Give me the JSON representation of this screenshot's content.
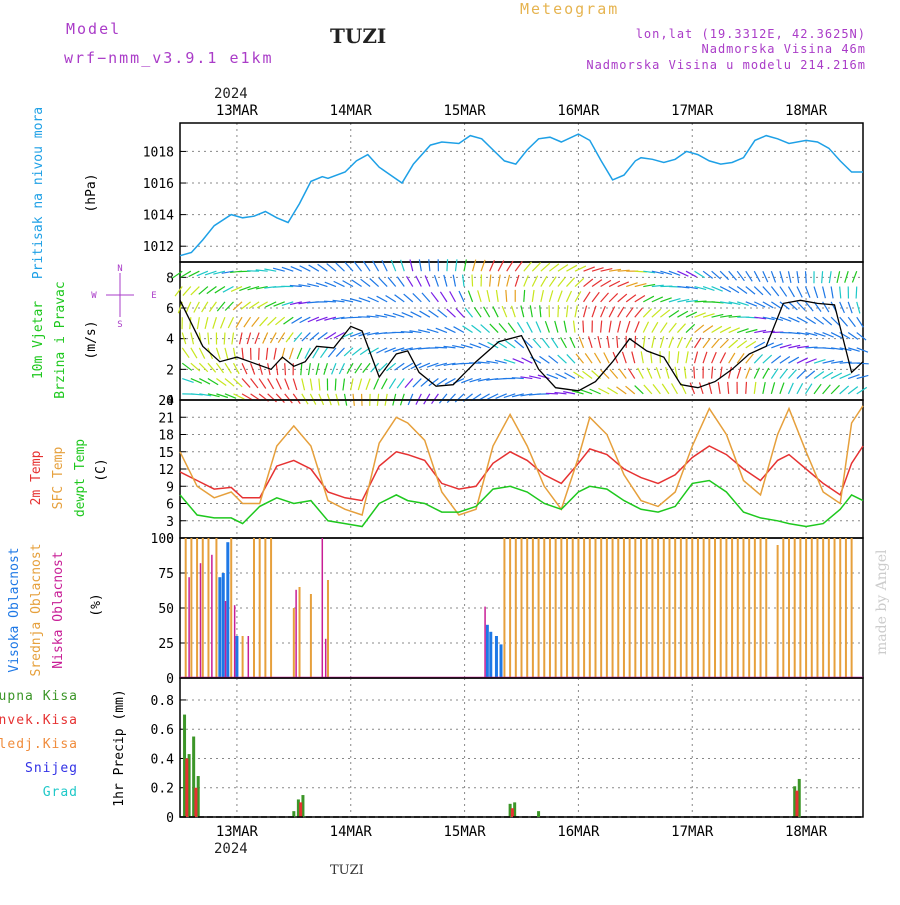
{
  "header": {
    "model_label": "Model",
    "model_name": "wrf−nmm_v3.9.1  e1km",
    "station": "TUZI",
    "meteogram_title": "Meteogram",
    "lonlat": "lon,lat (19.3312E, 42.3625N)",
    "elevation": "Nadmorska Visina 46m",
    "model_elevation": "Nadmorska Visina u modelu 214.216m",
    "year_top": "2024",
    "year_bottom": "2024",
    "footer_station": "TUZI",
    "credit": "made by Angel"
  },
  "colors": {
    "pressure": "#1ea0e6",
    "temp2m": "#e63232",
    "sfc": "#e6a03c",
    "dewpt": "#1ec81e",
    "high_cloud": "#1e78e6",
    "mid_cloud": "#e6a03c",
    "low_cloud": "#c81e96",
    "total_precip": "#3c9628",
    "convective": "#e63232",
    "frozen": "#f08c3c",
    "snow": "#3232e6",
    "grad": "#1ec8c8",
    "purple_text": "#aa3cc8",
    "gold_text": "#e6b450"
  },
  "chart_data": [
    {
      "type": "line",
      "panel": "pressure",
      "ylabel_lines": [
        "Pritisak na nivou mora",
        "(hPa)"
      ],
      "x_ticks": [
        "13MAR",
        "14MAR",
        "15MAR",
        "16MAR",
        "17MAR",
        "18MAR"
      ],
      "ylim": [
        1011,
        1019.8
      ],
      "y_ticks": [
        1012,
        1014,
        1016,
        1018
      ],
      "grid": true,
      "series": [
        {
          "values_x": [
            0,
            0.1,
            0.2,
            0.3,
            0.45,
            0.55,
            0.65,
            0.75,
            0.85,
            0.95,
            1.05,
            1.15,
            1.25,
            1.3,
            1.45,
            1.55,
            1.65,
            1.75,
            1.85,
            1.95,
            2.05,
            2.2,
            2.3,
            2.45,
            2.55,
            2.65,
            2.75,
            2.85,
            2.95,
            3.05,
            3.15,
            3.25,
            3.35,
            3.5,
            3.6,
            3.7,
            3.8,
            3.9,
            4.0,
            4.05,
            4.15,
            4.25,
            4.35,
            4.45,
            4.55,
            4.65,
            4.75,
            4.85,
            4.95,
            5.05,
            5.15,
            5.25,
            5.35,
            5.5,
            5.6,
            5.7,
            5.8,
            5.9,
            6.0
          ],
          "values": [
            1011.4,
            1011.6,
            1012.4,
            1013.3,
            1014.0,
            1013.8,
            1013.9,
            1014.2,
            1013.8,
            1013.5,
            1014.7,
            1016.1,
            1016.4,
            1016.3,
            1016.7,
            1017.4,
            1017.8,
            1017.0,
            1016.5,
            1016.0,
            1017.2,
            1018.4,
            1018.6,
            1018.5,
            1019.0,
            1018.8,
            1018.1,
            1017.4,
            1017.2,
            1018.1,
            1018.8,
            1018.9,
            1018.6,
            1019.1,
            1018.7,
            1017.4,
            1016.2,
            1016.5,
            1017.4,
            1017.6,
            1017.5,
            1017.3,
            1017.5,
            1018.0,
            1017.8,
            1017.4,
            1017.2,
            1017.3,
            1017.6,
            1018.7,
            1019.0,
            1018.8,
            1018.5,
            1018.7,
            1018.6,
            1018.2,
            1017.4,
            1016.7,
            1016.7
          ]
        }
      ]
    },
    {
      "type": "line",
      "panel": "wind",
      "ylabel_lines": [
        "10m Vjetar",
        "Brzina i Pravac",
        "(m/s)"
      ],
      "compass": {
        "north": "N",
        "west": "W",
        "east": "E",
        "south": "S"
      },
      "ylim": [
        0,
        9
      ],
      "y_ticks": [
        0,
        2,
        4,
        6,
        8
      ],
      "series": [
        {
          "name": "wind speed",
          "values_x": [
            0,
            0.2,
            0.35,
            0.5,
            0.65,
            0.8,
            0.9,
            1.0,
            1.1,
            1.2,
            1.35,
            1.5,
            1.6,
            1.75,
            1.9,
            2.0,
            2.1,
            2.25,
            2.4,
            2.6,
            2.8,
            3.0,
            3.15,
            3.3,
            3.5,
            3.65,
            3.8,
            3.95,
            4.1,
            4.25,
            4.4,
            4.55,
            4.7,
            4.85,
            5.0,
            5.15,
            5.3,
            5.45,
            5.6,
            5.75,
            5.9,
            6.0
          ],
          "values": [
            6.5,
            3.5,
            2.5,
            2.8,
            2.4,
            2.0,
            2.8,
            2.2,
            2.5,
            3.5,
            3.4,
            4.8,
            4.5,
            1.5,
            3.0,
            3.2,
            1.8,
            0.9,
            1.0,
            2.5,
            3.8,
            4.2,
            2.0,
            0.8,
            0.6,
            1.2,
            2.5,
            4.0,
            3.2,
            2.8,
            1.0,
            0.8,
            1.2,
            2.0,
            3.0,
            3.5,
            6.3,
            6.5,
            6.3,
            6.2,
            1.8,
            2.5
          ]
        }
      ]
    },
    {
      "type": "line",
      "panel": "temperature",
      "ylabel_lines": [
        "2m Temp",
        "SFC Temp",
        "dewpt Temp",
        "(C)"
      ],
      "ylim": [
        0,
        24
      ],
      "y_ticks": [
        0,
        3,
        6,
        9,
        12,
        15,
        18,
        21,
        24
      ],
      "series": [
        {
          "name": "2m Temp",
          "values_x": [
            0,
            0.15,
            0.3,
            0.45,
            0.55,
            0.7,
            0.85,
            1.0,
            1.15,
            1.3,
            1.45,
            1.6,
            1.75,
            1.9,
            2.0,
            2.15,
            2.3,
            2.45,
            2.6,
            2.75,
            2.9,
            3.05,
            3.2,
            3.35,
            3.5,
            3.6,
            3.75,
            3.9,
            4.05,
            4.2,
            4.35,
            4.5,
            4.65,
            4.8,
            4.95,
            5.1,
            5.25,
            5.35,
            5.5,
            5.65,
            5.8,
            5.9,
            6.0
          ],
          "values": [
            11.5,
            10.0,
            8.5,
            8.8,
            7.0,
            7.0,
            12.5,
            13.5,
            12.0,
            8.0,
            7.0,
            6.5,
            12.5,
            15.0,
            14.5,
            13.5,
            9.5,
            8.5,
            9.0,
            13.0,
            15.0,
            13.5,
            11.0,
            9.5,
            13.0,
            15.5,
            14.5,
            12.0,
            10.5,
            9.5,
            11.0,
            14.0,
            16.0,
            14.5,
            12.0,
            10.0,
            13.5,
            14.5,
            12.0,
            9.5,
            7.5,
            13.0,
            16.0
          ]
        },
        {
          "name": "SFC Temp",
          "values_x": [
            0,
            0.15,
            0.3,
            0.45,
            0.55,
            0.7,
            0.85,
            1.0,
            1.15,
            1.3,
            1.45,
            1.6,
            1.75,
            1.9,
            2.0,
            2.15,
            2.3,
            2.45,
            2.6,
            2.75,
            2.9,
            3.05,
            3.2,
            3.35,
            3.5,
            3.6,
            3.75,
            3.9,
            4.05,
            4.2,
            4.35,
            4.5,
            4.65,
            4.8,
            4.95,
            5.1,
            5.25,
            5.35,
            5.5,
            5.65,
            5.8,
            5.9,
            6.0
          ],
          "values": [
            15.0,
            9.0,
            7.0,
            8.0,
            6.0,
            6.0,
            16.0,
            19.5,
            16.0,
            6.5,
            5.0,
            4.0,
            16.5,
            21.0,
            20.0,
            17.0,
            8.0,
            4.0,
            5.0,
            16.0,
            21.5,
            16.0,
            9.0,
            5.0,
            14.0,
            21.0,
            18.0,
            11.0,
            6.5,
            5.5,
            8.0,
            16.0,
            22.5,
            18.0,
            10.0,
            7.5,
            18.0,
            22.5,
            15.0,
            8.0,
            6.0,
            20.0,
            23.0
          ]
        },
        {
          "name": "dewpt Temp",
          "values_x": [
            0,
            0.15,
            0.3,
            0.45,
            0.55,
            0.7,
            0.85,
            1.0,
            1.15,
            1.3,
            1.45,
            1.6,
            1.75,
            1.9,
            2.0,
            2.15,
            2.3,
            2.45,
            2.6,
            2.75,
            2.9,
            3.05,
            3.2,
            3.35,
            3.5,
            3.6,
            3.75,
            3.9,
            4.05,
            4.2,
            4.35,
            4.5,
            4.65,
            4.8,
            4.95,
            5.1,
            5.25,
            5.35,
            5.5,
            5.65,
            5.8,
            5.9,
            6.0
          ],
          "values": [
            7.5,
            4.0,
            3.5,
            3.5,
            2.5,
            5.5,
            7.0,
            6.0,
            6.5,
            3.0,
            2.5,
            2.0,
            6.0,
            7.5,
            6.5,
            6.0,
            4.5,
            4.5,
            5.5,
            8.5,
            9.0,
            8.0,
            6.0,
            5.0,
            8.0,
            9.0,
            8.5,
            6.5,
            5.0,
            4.5,
            5.5,
            9.5,
            10.0,
            8.0,
            4.5,
            3.5,
            3.0,
            2.5,
            2.0,
            2.5,
            5.0,
            7.5,
            6.5
          ]
        }
      ]
    },
    {
      "type": "bar",
      "panel": "clouds",
      "ylabel_lines": [
        "Visoka Oblacnost",
        "Srednja Oblacnost",
        "Niska  Oblacnost",
        "(%)"
      ],
      "ylim": [
        0,
        100
      ],
      "y_ticks": [
        0,
        25,
        50,
        75,
        100
      ],
      "series": [
        {
          "name": "Visoka Oblacnost",
          "values_x": [
            0.35,
            0.38,
            0.42,
            0.5,
            2.7,
            2.73,
            2.78,
            2.82
          ],
          "values": [
            72,
            75,
            97,
            30,
            38,
            33,
            30,
            24
          ]
        },
        {
          "name": "Srednja Oblacnost",
          "values_x": [
            0.05,
            0.1,
            0.15,
            0.2,
            0.25,
            0.32,
            0.45,
            0.55,
            0.65,
            0.7,
            0.75,
            0.8,
            1.0,
            1.05,
            1.15,
            1.3,
            2.85,
            2.9,
            2.95,
            3.0,
            3.05,
            3.1,
            3.15,
            3.2,
            3.25,
            3.3,
            3.35,
            3.4,
            3.45,
            3.5,
            3.55,
            3.6,
            3.65,
            3.7,
            3.75,
            3.8,
            3.85,
            3.9,
            3.95,
            4.0,
            4.05,
            4.1,
            4.15,
            4.2,
            4.25,
            4.3,
            4.35,
            4.4,
            4.45,
            4.5,
            4.55,
            4.6,
            4.65,
            4.7,
            4.75,
            4.8,
            4.85,
            4.9,
            4.95,
            5.0,
            5.05,
            5.1,
            5.15,
            5.25,
            5.3,
            5.35,
            5.4,
            5.45,
            5.5,
            5.55,
            5.6,
            5.65,
            5.7,
            5.75,
            5.8,
            5.85,
            5.9
          ],
          "values": [
            100,
            100,
            100,
            100,
            100,
            100,
            100,
            30,
            100,
            100,
            100,
            100,
            50,
            65,
            60,
            70,
            100,
            100,
            100,
            100,
            100,
            100,
            100,
            100,
            100,
            100,
            100,
            100,
            100,
            100,
            100,
            100,
            100,
            100,
            100,
            100,
            100,
            100,
            100,
            100,
            100,
            100,
            100,
            100,
            100,
            100,
            100,
            100,
            100,
            100,
            100,
            100,
            100,
            100,
            100,
            100,
            100,
            100,
            100,
            100,
            100,
            100,
            100,
            95,
            100,
            100,
            100,
            100,
            100,
            100,
            100,
            100,
            100,
            100,
            100,
            100,
            100
          ]
        },
        {
          "name": "Niska  Oblacnost",
          "values_x": [
            0.08,
            0.18,
            0.28,
            0.4,
            0.48,
            0.6,
            1.02,
            1.25,
            1.28,
            2.68
          ],
          "values": [
            72,
            82,
            88,
            55,
            52,
            30,
            63,
            100,
            28,
            51
          ]
        }
      ]
    },
    {
      "type": "bar",
      "panel": "precip",
      "ylabel_lines": [
        "1hr Precip (mm)"
      ],
      "legend": [
        "Ukupna  Kisa",
        "Konvek.Kisa",
        "Zaledj.Kisa",
        "Snijeg",
        "Grad"
      ],
      "ylim": [
        0,
        0.95
      ],
      "y_ticks": [
        0,
        0.2,
        0.4,
        0.6,
        0.8
      ],
      "x_ticks": [
        "13MAR",
        "14MAR",
        "15MAR",
        "16MAR",
        "17MAR",
        "18MAR"
      ],
      "series": [
        {
          "name": "Ukupna  Kisa",
          "values_x": [
            0.04,
            0.08,
            0.12,
            0.16,
            1.0,
            1.04,
            1.08,
            2.9,
            2.94,
            3.15,
            5.4,
            5.44
          ],
          "values": [
            0.7,
            0.43,
            0.55,
            0.28,
            0.04,
            0.12,
            0.15,
            0.09,
            0.1,
            0.04,
            0.21,
            0.26
          ]
        },
        {
          "name": "Konvek.Kisa",
          "values_x": [
            0.06,
            0.14,
            1.06,
            2.92,
            5.42
          ],
          "values": [
            0.4,
            0.2,
            0.1,
            0.06,
            0.18
          ]
        }
      ]
    }
  ]
}
